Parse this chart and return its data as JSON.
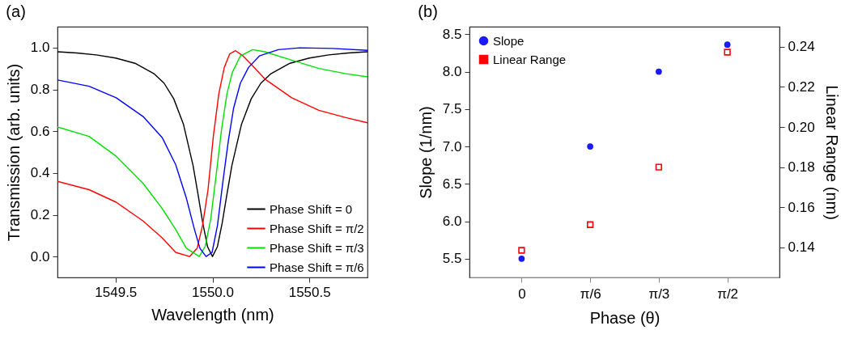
{
  "chart_data": [
    {
      "type": "line",
      "title": "(a)",
      "xlabel": "Wavelength (nm)",
      "ylabel": "Transmission (arb. units)",
      "xlim": [
        1549.2,
        1550.8
      ],
      "ylim": [
        -0.1,
        1.1
      ],
      "xticks": [
        1549.5,
        {
          "value": 1550,
          "label": "1550.0"
        },
        1550.5
      ],
      "yticks": [
        {
          "value": 0,
          "label": "0.0"
        },
        0.2,
        0.4,
        0.6,
        0.8,
        {
          "value": 1,
          "label": "1.0"
        }
      ],
      "grid": false,
      "legend": "bottom right",
      "series": [
        {
          "name": "Phase Shift = 0",
          "color": "#000000",
          "x": [
            1549.2,
            1549.3,
            1549.4,
            1549.5,
            1549.6,
            1549.7,
            1549.75,
            1549.8,
            1549.85,
            1549.9,
            1549.925,
            1549.95,
            1549.975,
            1550.0,
            1550.025,
            1550.05,
            1550.075,
            1550.1,
            1550.15,
            1550.2,
            1550.25,
            1550.3,
            1550.4,
            1550.5,
            1550.6,
            1550.7,
            1550.8
          ],
          "values": [
            0.98,
            0.974,
            0.965,
            0.95,
            0.925,
            0.874,
            0.83,
            0.755,
            0.634,
            0.435,
            0.3,
            0.16,
            0.046,
            0,
            0.046,
            0.16,
            0.3,
            0.435,
            0.634,
            0.755,
            0.83,
            0.874,
            0.925,
            0.95,
            0.965,
            0.974,
            0.98
          ]
        },
        {
          "name": "Phase Shift = π/2",
          "color": "#ff0000",
          "x": [
            1549.2,
            1549.363,
            1549.503,
            1549.642,
            1549.74,
            1549.81,
            1549.882,
            1549.921,
            1549.949,
            1549.977,
            1550.005,
            1550.033,
            1550.061,
            1550.089,
            1550.119,
            1550.158,
            1550.2,
            1550.27,
            1550.409,
            1550.549,
            1550.688,
            1550.8
          ],
          "values": [
            0.36,
            0.32,
            0.26,
            0.17,
            0.09,
            0.02,
            0,
            0.04,
            0.15,
            0.32,
            0.58,
            0.78,
            0.905,
            0.97,
            0.985,
            0.96,
            0.92,
            0.85,
            0.76,
            0.7,
            0.665,
            0.64
          ]
        },
        {
          "name": "Phase Shift = π/3",
          "color": "#00e000",
          "x": [
            1549.2,
            1549.363,
            1549.503,
            1549.642,
            1549.74,
            1549.81,
            1549.865,
            1549.932,
            1549.963,
            1549.991,
            1550.019,
            1550.047,
            1550.075,
            1550.102,
            1550.144,
            1550.207,
            1550.27,
            1550.409,
            1550.549,
            1550.688,
            1550.8
          ],
          "values": [
            0.62,
            0.575,
            0.48,
            0.35,
            0.23,
            0.13,
            0.04,
            0,
            0.05,
            0.18,
            0.39,
            0.61,
            0.78,
            0.88,
            0.96,
            0.99,
            0.98,
            0.94,
            0.9,
            0.875,
            0.86
          ]
        },
        {
          "name": "Phase Shift = π/6",
          "color": "#0000ff",
          "x": [
            1549.2,
            1549.363,
            1549.503,
            1549.642,
            1549.74,
            1549.81,
            1549.865,
            1549.907,
            1549.935,
            1549.967,
            1549.998,
            1550.026,
            1550.054,
            1550.082,
            1550.109,
            1550.144,
            1550.186,
            1550.242,
            1550.34,
            1550.451,
            1550.619,
            1550.8
          ],
          "values": [
            0.845,
            0.815,
            0.76,
            0.67,
            0.57,
            0.44,
            0.28,
            0.13,
            0.04,
            0,
            0.02,
            0.15,
            0.36,
            0.555,
            0.71,
            0.83,
            0.905,
            0.96,
            0.99,
            0.999,
            0.996,
            0.987
          ]
        }
      ]
    },
    {
      "type": "scatter",
      "title": "(b)",
      "xlabel": "Phase (θ)",
      "ylabel": "Slope (1/nm)",
      "y2label": "Linear Range (nm)",
      "categories": [
        "0",
        "π/6",
        "π/3",
        "π/2"
      ],
      "ylim": [
        5.25,
        8.6
      ],
      "yticks": [
        5.5,
        {
          "value": 6,
          "label": "6.0"
        },
        6.5,
        {
          "value": 7,
          "label": "7.0"
        },
        7.5,
        {
          "value": 8,
          "label": "8.0"
        },
        8.5
      ],
      "y2lim": [
        0.125,
        0.25
      ],
      "y2ticks": [
        0.14,
        0.16,
        0.18,
        {
          "value": 0.2,
          "label": "0.20"
        },
        0.22,
        0.24
      ],
      "grid": false,
      "legend": "top left",
      "series": [
        {
          "name": "Slope",
          "color": "#1a1aff",
          "marker": "circle",
          "values": [
            5.5,
            7.0,
            8.0,
            8.36
          ]
        },
        {
          "name": "Linear Range",
          "color": "#ff0000",
          "marker": "square",
          "axis": "y2",
          "values": [
            0.1385,
            0.1513,
            0.18,
            0.2373
          ]
        }
      ]
    }
  ]
}
